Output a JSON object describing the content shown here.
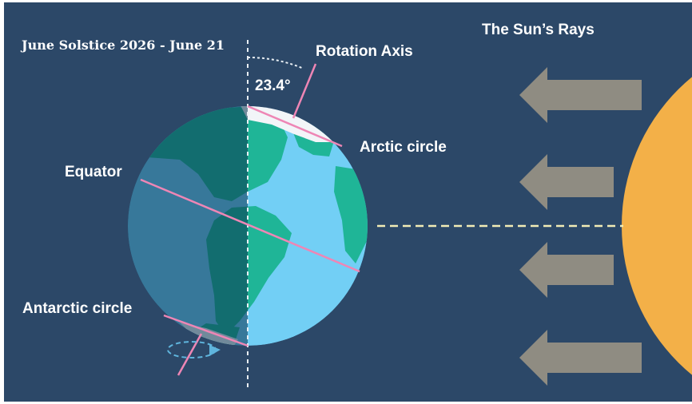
{
  "diagram": {
    "title": "June Solstice 2026 - June 21",
    "labels": {
      "rotation_axis": "Rotation Axis",
      "tilt_angle": "23.4°",
      "arctic_circle": "Arctic circle",
      "equator": "Equator",
      "antarctic_circle": "Antarctic circle",
      "sun_rays": "The Sun’s Rays"
    },
    "colors": {
      "background": "#2c4868",
      "ocean_day": "#72cff5",
      "ocean_night": "#1a5f7a",
      "land_day": "#1fb597",
      "land_night": "#138471",
      "sun": "#f3b048",
      "arrow": "#8f8c82",
      "circle_lines": "#ee86b5",
      "ice": "#f2f5f8"
    },
    "icons": [
      "sun-rays-arrow-icon",
      "rotation-direction-icon"
    ]
  }
}
